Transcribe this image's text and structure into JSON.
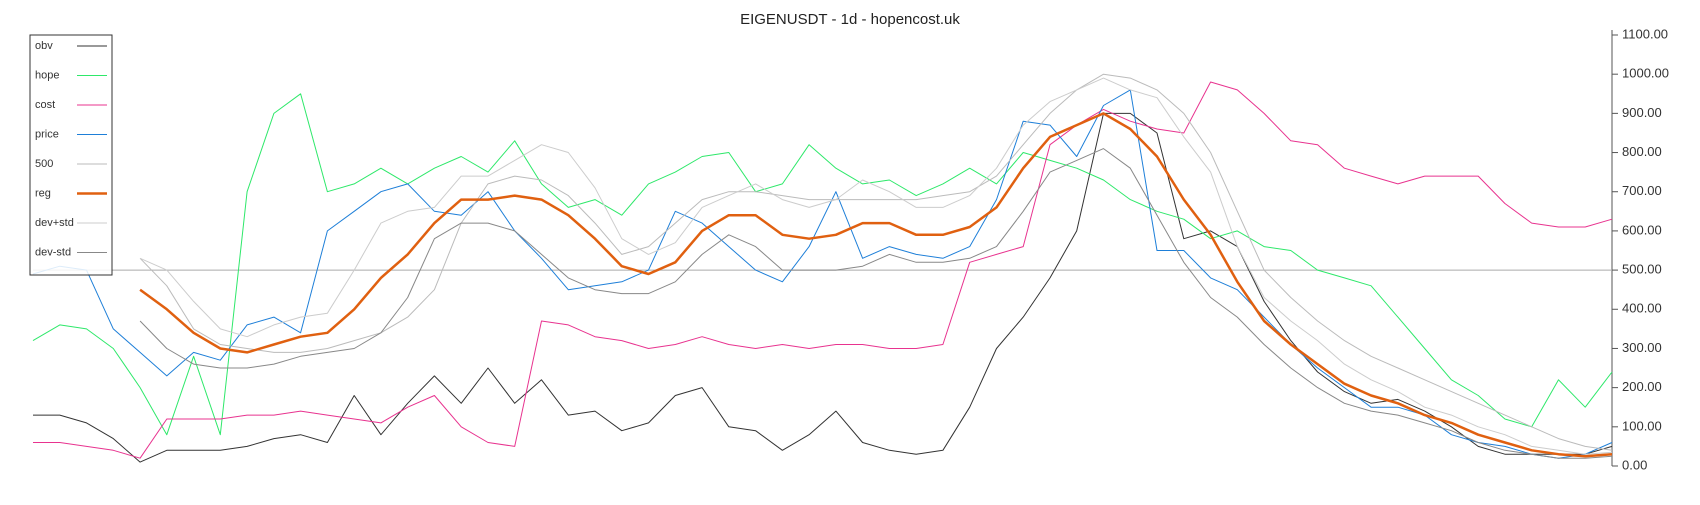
{
  "chart_data": {
    "type": "line",
    "title": "EIGENUSDT - 1d - hopencost.uk",
    "ylim": [
      0,
      1100
    ],
    "yticks": [
      {
        "value": 0,
        "label": "0.00"
      },
      {
        "value": 100,
        "label": "100.00"
      },
      {
        "value": 200,
        "label": "200.00"
      },
      {
        "value": 300,
        "label": "300.00"
      },
      {
        "value": 400,
        "label": "400.00"
      },
      {
        "value": 500,
        "label": "500.00"
      },
      {
        "value": 600,
        "label": "600.00"
      },
      {
        "value": 700,
        "label": "700.00"
      },
      {
        "value": 800,
        "label": "800.00"
      },
      {
        "value": 900,
        "label": "900.00"
      },
      {
        "value": 1000,
        "label": "1000.00"
      },
      {
        "value": 1100,
        "label": "1100.00"
      }
    ],
    "y_axis_side": "right",
    "grid": false,
    "legend": "upper left",
    "hlines": [
      {
        "value": 500,
        "color": "#aaaaaa"
      }
    ],
    "series": [
      {
        "name": "obv",
        "color": "#333333",
        "linewidth": 1,
        "values": [
          130,
          130,
          110,
          70,
          10,
          40,
          40,
          40,
          50,
          70,
          80,
          60,
          180,
          80,
          160,
          230,
          160,
          250,
          160,
          220,
          130,
          140,
          90,
          110,
          180,
          200,
          100,
          90,
          40,
          80,
          140,
          60,
          40,
          30,
          40,
          150,
          300,
          380,
          480,
          600,
          900,
          900,
          850,
          580,
          600,
          560,
          420,
          320,
          240,
          190,
          160,
          170,
          140,
          100,
          50,
          30,
          30,
          30,
          30,
          50
        ]
      },
      {
        "name": "hope",
        "color": "#2ee86a",
        "linewidth": 1,
        "values": [
          320,
          360,
          350,
          300,
          200,
          80,
          280,
          80,
          700,
          900,
          950,
          700,
          720,
          760,
          720,
          760,
          790,
          750,
          830,
          720,
          660,
          680,
          640,
          720,
          750,
          790,
          800,
          700,
          720,
          820,
          760,
          720,
          730,
          690,
          720,
          760,
          720,
          800,
          780,
          760,
          730,
          680,
          650,
          630,
          580,
          600,
          560,
          550,
          500,
          480,
          460,
          380,
          300,
          220,
          180,
          120,
          100,
          220,
          150,
          240
        ]
      },
      {
        "name": "cost",
        "color": "#e8338f",
        "linewidth": 1,
        "values": [
          60,
          60,
          50,
          40,
          20,
          120,
          120,
          120,
          130,
          130,
          140,
          130,
          120,
          110,
          150,
          180,
          100,
          60,
          50,
          370,
          360,
          330,
          320,
          300,
          310,
          330,
          310,
          300,
          310,
          300,
          310,
          310,
          300,
          300,
          310,
          520,
          540,
          560,
          820,
          870,
          910,
          880,
          860,
          850,
          980,
          960,
          900,
          830,
          820,
          760,
          740,
          720,
          740,
          740,
          740,
          670,
          620,
          610,
          610,
          630
        ]
      },
      {
        "name": "price",
        "color": "#1e7fd8",
        "linewidth": 1,
        "values": [
          490,
          510,
          500,
          350,
          290,
          230,
          290,
          270,
          360,
          380,
          340,
          600,
          650,
          700,
          720,
          650,
          640,
          700,
          600,
          530,
          450,
          460,
          470,
          500,
          650,
          620,
          560,
          500,
          470,
          560,
          700,
          530,
          560,
          540,
          530,
          560,
          680,
          880,
          870,
          790,
          920,
          960,
          550,
          550,
          480,
          450,
          380,
          310,
          250,
          200,
          150,
          150,
          130,
          80,
          60,
          50,
          30,
          20,
          30,
          60
        ]
      },
      {
        "name": "500",
        "color": "#bbbbbb",
        "linewidth": 1,
        "values": [
          null,
          null,
          null,
          null,
          530,
          460,
          350,
          310,
          300,
          290,
          290,
          300,
          320,
          340,
          380,
          450,
          620,
          720,
          740,
          730,
          690,
          620,
          540,
          560,
          620,
          680,
          700,
          700,
          690,
          680,
          680,
          680,
          680,
          680,
          690,
          700,
          740,
          820,
          900,
          960,
          1000,
          990,
          960,
          900,
          800,
          650,
          500,
          430,
          370,
          320,
          280,
          250,
          220,
          190,
          160,
          130,
          100,
          70,
          50,
          40
        ]
      },
      {
        "name": "reg",
        "color": "#e06010",
        "linewidth": 2.5,
        "values": [
          null,
          null,
          null,
          null,
          450,
          400,
          340,
          300,
          290,
          310,
          330,
          340,
          400,
          480,
          540,
          620,
          680,
          680,
          690,
          680,
          640,
          580,
          510,
          490,
          520,
          600,
          640,
          640,
          590,
          580,
          590,
          620,
          620,
          590,
          590,
          610,
          660,
          760,
          840,
          870,
          900,
          860,
          790,
          680,
          590,
          470,
          370,
          310,
          260,
          210,
          180,
          160,
          130,
          110,
          80,
          60,
          40,
          30,
          25,
          30
        ]
      },
      {
        "name": "dev+std",
        "color": "#cccccc",
        "linewidth": 1,
        "values": [
          null,
          null,
          null,
          null,
          530,
          500,
          420,
          350,
          330,
          360,
          380,
          390,
          500,
          620,
          650,
          660,
          740,
          740,
          780,
          820,
          800,
          710,
          580,
          540,
          570,
          660,
          690,
          720,
          680,
          660,
          680,
          730,
          700,
          660,
          660,
          690,
          760,
          870,
          930,
          960,
          990,
          960,
          940,
          840,
          750,
          560,
          430,
          370,
          320,
          260,
          220,
          190,
          150,
          130,
          100,
          80,
          50,
          40,
          30,
          35
        ]
      },
      {
        "name": "dev-std",
        "color": "#888888",
        "linewidth": 1,
        "values": [
          null,
          null,
          null,
          null,
          370,
          300,
          260,
          250,
          250,
          260,
          280,
          290,
          300,
          340,
          430,
          580,
          620,
          620,
          600,
          540,
          480,
          450,
          440,
          440,
          470,
          540,
          590,
          560,
          500,
          500,
          500,
          510,
          540,
          520,
          520,
          530,
          560,
          650,
          750,
          780,
          810,
          760,
          640,
          520,
          430,
          380,
          310,
          250,
          200,
          160,
          140,
          130,
          110,
          90,
          60,
          40,
          30,
          20,
          20,
          25
        ]
      }
    ]
  }
}
